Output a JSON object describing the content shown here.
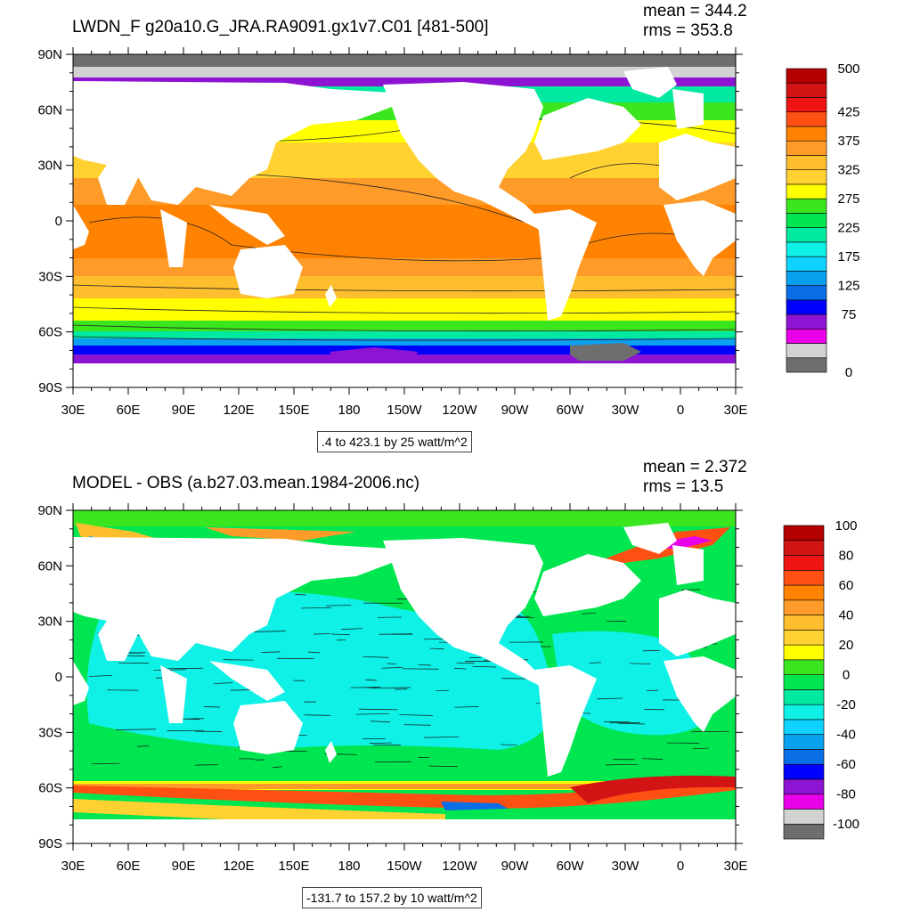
{
  "top": {
    "title": "LWDN_F g20a10.G_JRA.RA9091.gx1v7.C01 [481-500]",
    "mean": "mean = 344.2",
    "rms": "rms = 353.8",
    "range_label": ".4 to 423.1 by 25 watt/m^2",
    "colorbar": {
      "colors": [
        "#6e6e6e",
        "#d2d2d2",
        "#e800e8",
        "#8c14d2",
        "#0000ff",
        "#0a6ee6",
        "#0aa0f0",
        "#10d2ff",
        "#0ff0e6",
        "#00e9a0",
        "#00e650",
        "#3ce61e",
        "#ffff00",
        "#ffd232",
        "#ffbe2d",
        "#ff9b28",
        "#ff8200",
        "#ff5014",
        "#f01414",
        "#d21414",
        "#b40000"
      ],
      "labels": [
        {
          "text": "500",
          "pos": 0
        },
        {
          "text": "425",
          "pos": 3
        },
        {
          "text": "375",
          "pos": 5
        },
        {
          "text": "325",
          "pos": 7
        },
        {
          "text": "275",
          "pos": 9
        },
        {
          "text": "225",
          "pos": 11
        },
        {
          "text": "175",
          "pos": 13
        },
        {
          "text": "125",
          "pos": 15
        },
        {
          "text": "75",
          "pos": 17
        },
        {
          "text": "0",
          "pos": 21
        }
      ]
    }
  },
  "bottom": {
    "title": "MODEL - OBS (a.b27.03.mean.1984-2006.nc)",
    "mean": "mean = 2.372",
    "rms": "rms = 13.5",
    "range_label": "-131.7 to 157.2 by 10 watt/m^2",
    "colorbar": {
      "colors": [
        "#6e6e6e",
        "#d2d2d2",
        "#e800e8",
        "#8c14d2",
        "#0000ff",
        "#0a6ee6",
        "#0aa0f0",
        "#10d2ff",
        "#0ff0e6",
        "#00e9a0",
        "#00e650",
        "#3ce61e",
        "#ffff00",
        "#ffd232",
        "#ffbe2d",
        "#ff9b28",
        "#ff8200",
        "#ff5014",
        "#f01414",
        "#d21414",
        "#b40000"
      ],
      "labels": [
        {
          "text": "100",
          "pos": 0
        },
        {
          "text": "80",
          "pos": 2
        },
        {
          "text": "60",
          "pos": 4
        },
        {
          "text": "40",
          "pos": 6
        },
        {
          "text": "20",
          "pos": 8
        },
        {
          "text": "0",
          "pos": 10
        },
        {
          "text": "-20",
          "pos": 12
        },
        {
          "text": "-40",
          "pos": 14
        },
        {
          "text": "-60",
          "pos": 16
        },
        {
          "text": "-80",
          "pos": 18
        },
        {
          "text": "-100",
          "pos": 20
        }
      ]
    }
  },
  "axes": {
    "lat_labels": [
      "90N",
      "60N",
      "30N",
      "0",
      "30S",
      "60S",
      "90S"
    ],
    "lon_labels": [
      "30E",
      "60E",
      "90E",
      "120E",
      "150E",
      "180",
      "150W",
      "120W",
      "90W",
      "60W",
      "30W",
      "0",
      "30E"
    ]
  },
  "colors": {
    "land": "#ffffff",
    "sea_ice": "#6e6e6e"
  }
}
